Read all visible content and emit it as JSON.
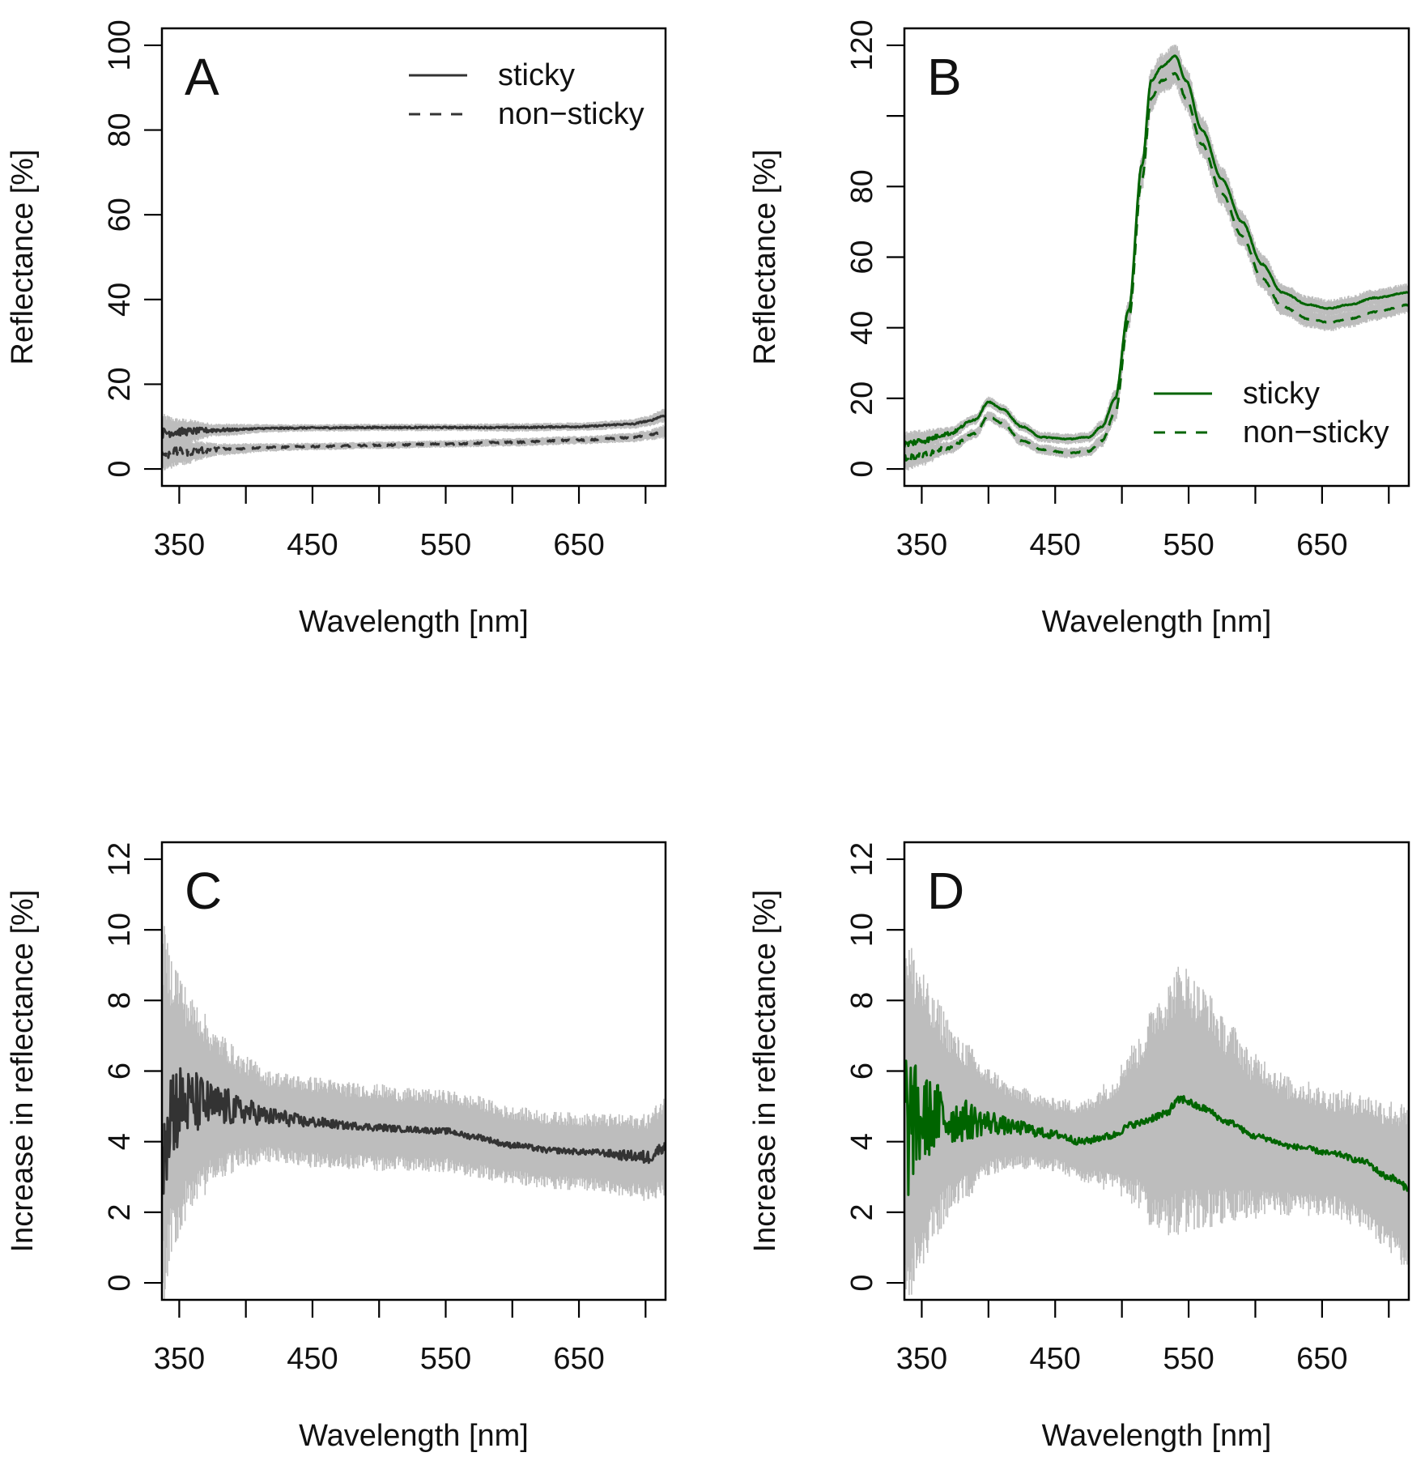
{
  "colors": {
    "black_line": "#333333",
    "green_line": "#006400",
    "band": "#bdbdbd",
    "frame": "#000000"
  },
  "chart_data": [
    {
      "panel": "A",
      "type": "line",
      "xlabel": "Wavelength [nm]",
      "ylabel": "Reflectance [%]",
      "xlim": [
        337,
        715
      ],
      "ylim": [
        -4,
        104
      ],
      "xticks": [
        350,
        400,
        450,
        500,
        550,
        600,
        650,
        700
      ],
      "xtick_labels": [
        "350",
        "450",
        "550",
        "650"
      ],
      "yticks": [
        0,
        20,
        40,
        60,
        80,
        100
      ],
      "ytick_labels": [
        "0",
        "20",
        "40",
        "60",
        "80",
        "100"
      ],
      "legend": {
        "position": "top-right",
        "entries": [
          "sticky",
          "non−sticky"
        ]
      },
      "series": [
        {
          "name": "sticky",
          "style": "solid",
          "color": "#333333",
          "noise": 1.2,
          "x": [
            337,
            350,
            380,
            420,
            450,
            500,
            550,
            600,
            650,
            690,
            700,
            715
          ],
          "y": [
            8.5,
            8.8,
            9.2,
            9.6,
            9.7,
            9.8,
            9.8,
            9.8,
            10.0,
            10.6,
            11.2,
            12.6
          ],
          "band": [
            3.5,
            2.5,
            1.2,
            0.8,
            0.7,
            0.7,
            0.7,
            0.8,
            0.8,
            0.9,
            1.0,
            1.3
          ]
        },
        {
          "name": "non−sticky",
          "style": "dashed",
          "color": "#333333",
          "noise": 1.3,
          "x": [
            337,
            350,
            380,
            420,
            450,
            500,
            550,
            600,
            650,
            690,
            700,
            715
          ],
          "y": [
            3.5,
            4.0,
            4.6,
            5.1,
            5.3,
            5.6,
            5.9,
            6.3,
            6.8,
            7.4,
            7.9,
            8.8
          ],
          "band": [
            3.5,
            2.5,
            1.2,
            0.8,
            0.7,
            0.7,
            0.7,
            0.8,
            0.8,
            0.9,
            1.0,
            1.3
          ]
        }
      ]
    },
    {
      "panel": "B",
      "type": "line",
      "xlabel": "Wavelength [nm]",
      "ylabel": "Reflectance [%]",
      "xlim": [
        337,
        715
      ],
      "ylim": [
        -4.8,
        124.8
      ],
      "xticks": [
        350,
        400,
        450,
        500,
        550,
        600,
        650,
        700
      ],
      "xtick_labels": [
        "350",
        "450",
        "550",
        "650"
      ],
      "yticks": [
        0,
        20,
        40,
        60,
        80,
        100,
        120
      ],
      "ytick_labels": [
        "0",
        "20",
        "40",
        "60",
        "80",
        "",
        "120"
      ],
      "legend": {
        "position": "bottom-right",
        "entries": [
          "sticky",
          "non−sticky"
        ]
      },
      "series": [
        {
          "name": "sticky",
          "style": "solid",
          "color": "#006400",
          "noise": 1.0,
          "x": [
            337,
            350,
            370,
            390,
            400,
            410,
            425,
            440,
            460,
            475,
            485,
            495,
            505,
            515,
            522,
            530,
            540,
            548,
            560,
            575,
            590,
            605,
            620,
            640,
            655,
            670,
            690,
            715
          ],
          "y": [
            7,
            8,
            10,
            14,
            19,
            17,
            12,
            9,
            8.5,
            9,
            12,
            20,
            45,
            86,
            110,
            114,
            117,
            110,
            96,
            82,
            70,
            58,
            50,
            46.5,
            45.5,
            46.5,
            48.5,
            50
          ],
          "band": [
            3,
            2.5,
            1.5,
            1.2,
            1.2,
            1.2,
            1.2,
            1.2,
            1.2,
            1.2,
            1.5,
            2,
            2,
            2.5,
            3,
            3,
            3,
            3,
            3,
            3,
            2.5,
            2.5,
            2,
            2,
            2,
            2,
            2,
            2
          ]
        },
        {
          "name": "non−sticky",
          "style": "dashed",
          "color": "#006400",
          "noise": 1.0,
          "x": [
            337,
            350,
            370,
            390,
            400,
            410,
            425,
            440,
            460,
            475,
            485,
            495,
            505,
            515,
            522,
            530,
            540,
            548,
            560,
            575,
            590,
            605,
            620,
            640,
            655,
            670,
            690,
            715
          ],
          "y": [
            3,
            4,
            6,
            10,
            15,
            13,
            8,
            5.5,
            4.5,
            5,
            8,
            16,
            42,
            82,
            105,
            110,
            112,
            105,
            92,
            78,
            66,
            54,
            46,
            42.5,
            41.5,
            42.5,
            44.5,
            46.5
          ],
          "band": [
            3,
            2.5,
            1.5,
            1.2,
            1.2,
            1.2,
            1.2,
            1.2,
            1.2,
            1.2,
            1.5,
            2,
            2,
            2.5,
            3,
            3,
            3,
            3,
            3,
            3,
            2.5,
            2.5,
            2,
            2,
            2,
            2,
            2,
            2
          ]
        }
      ]
    },
    {
      "panel": "C",
      "type": "line",
      "xlabel": "Wavelength [nm]",
      "ylabel": "Increase in reflectance [%]",
      "xlim": [
        337,
        715
      ],
      "ylim": [
        -0.48,
        12.48
      ],
      "xticks": [
        350,
        400,
        450,
        500,
        550,
        600,
        650,
        700
      ],
      "xtick_labels": [
        "350",
        "450",
        "550",
        "650"
      ],
      "yticks": [
        0,
        2,
        4,
        6,
        8,
        10,
        12
      ],
      "ytick_labels": [
        "0",
        "2",
        "4",
        "6",
        "8",
        "10",
        "12"
      ],
      "series": [
        {
          "name": "increase",
          "style": "solid",
          "color": "#333333",
          "noise": 0.08,
          "x": [
            337,
            345,
            360,
            380,
            400,
            420,
            450,
            480,
            500,
            520,
            550,
            570,
            600,
            630,
            660,
            690,
            700,
            715
          ],
          "y": [
            4.8,
            5.0,
            5.1,
            5.0,
            4.85,
            4.7,
            4.55,
            4.45,
            4.4,
            4.35,
            4.3,
            4.15,
            3.9,
            3.75,
            3.7,
            3.6,
            3.55,
            3.85
          ],
          "band": [
            4.2,
            3.3,
            2.3,
            1.6,
            1.2,
            1.0,
            1.0,
            0.95,
            0.95,
            0.9,
            0.9,
            0.9,
            0.85,
            0.85,
            0.85,
            0.9,
            0.95,
            1.1
          ],
          "noise_amp": [
            2.4,
            1.4,
            0.9,
            0.6,
            0.35,
            0.25,
            0.15,
            0.1,
            0.1,
            0.08,
            0.08,
            0.08,
            0.08,
            0.08,
            0.08,
            0.15,
            0.2,
            0.15
          ]
        }
      ]
    },
    {
      "panel": "D",
      "type": "line",
      "xlabel": "Wavelength [nm]",
      "ylabel": "Increase in reflectance [%]",
      "xlim": [
        337,
        715
      ],
      "ylim": [
        -0.48,
        12.48
      ],
      "xticks": [
        350,
        400,
        450,
        500,
        550,
        600,
        650,
        700
      ],
      "xtick_labels": [
        "350",
        "450",
        "550",
        "650"
      ],
      "yticks": [
        0,
        2,
        4,
        6,
        8,
        10,
        12
      ],
      "ytick_labels": [
        "0",
        "2",
        "4",
        "6",
        "8",
        "10",
        "12"
      ],
      "series": [
        {
          "name": "increase",
          "style": "solid",
          "color": "#006400",
          "noise": 0.08,
          "x": [
            337,
            345,
            360,
            380,
            400,
            420,
            450,
            470,
            490,
            510,
            530,
            545,
            560,
            580,
            600,
            630,
            660,
            680,
            700,
            715
          ],
          "y": [
            4.5,
            4.6,
            4.7,
            4.6,
            4.55,
            4.4,
            4.2,
            4.0,
            4.15,
            4.5,
            4.75,
            5.2,
            4.95,
            4.55,
            4.15,
            3.85,
            3.65,
            3.45,
            3.0,
            2.7
          ],
          "band": [
            4.5,
            3.7,
            2.6,
            1.8,
            1.2,
            0.9,
            0.8,
            0.9,
            1.2,
            1.8,
            2.8,
            3.0,
            2.7,
            2.2,
            1.8,
            1.5,
            1.4,
            1.5,
            1.7,
            1.8
          ],
          "noise_amp": [
            2.6,
            1.6,
            1.0,
            0.6,
            0.35,
            0.2,
            0.12,
            0.1,
            0.1,
            0.1,
            0.12,
            0.12,
            0.1,
            0.08,
            0.08,
            0.08,
            0.08,
            0.08,
            0.1,
            0.1
          ]
        }
      ]
    }
  ]
}
